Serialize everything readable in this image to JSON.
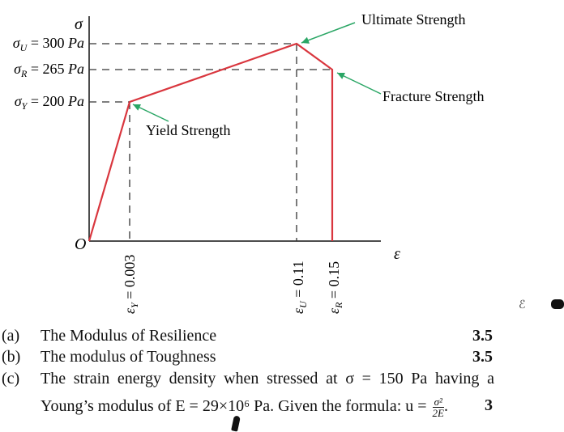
{
  "chart_data": {
    "type": "line",
    "y_axis_symbol": "σ",
    "x_axis_symbol": "ε",
    "origin_label": "O",
    "line_color": "#d9363e",
    "arrow_color": "#2aa665",
    "points": [
      {
        "strain": 0,
        "stress": 0
      },
      {
        "strain": 0.003,
        "stress": 200
      },
      {
        "strain": 0.11,
        "stress": 300
      },
      {
        "strain": 0.15,
        "stress": 265
      },
      {
        "strain": 0.15,
        "stress": 0
      }
    ],
    "stress_labels": [
      {
        "text": "σ_U = 300 Pa",
        "value": 300
      },
      {
        "text": "σ_R = 265 Pa",
        "value": 265
      },
      {
        "text": "σ_Y = 200 Pa",
        "value": 200
      }
    ],
    "strain_labels": [
      {
        "text": "ε_Y = 0.003",
        "value": 0.003
      },
      {
        "text": "ε_U = 0.11",
        "value": 0.11
      },
      {
        "text": "ε_R = 0.15",
        "value": 0.15
      }
    ],
    "annotations": {
      "ultimate": "Ultimate Strength",
      "fracture": "Fracture Strength",
      "yield": "Yield Strength"
    }
  },
  "questions": [
    {
      "label": "(a)",
      "text": "The Modulus of Resilience",
      "marks": "3.5"
    },
    {
      "label": "(b)",
      "text": "The modulus of Toughness",
      "marks": "3.5"
    },
    {
      "label": "(c)",
      "text_line1": "The strain energy density when stressed at σ = 150 Pa having a",
      "text_line2": "Young’s modulus of E = 29×10⁶ Pa. Given the formula: u =",
      "formula_num": "σ²",
      "formula_den": "2E",
      "formula_end": ".",
      "marks": "3"
    }
  ]
}
